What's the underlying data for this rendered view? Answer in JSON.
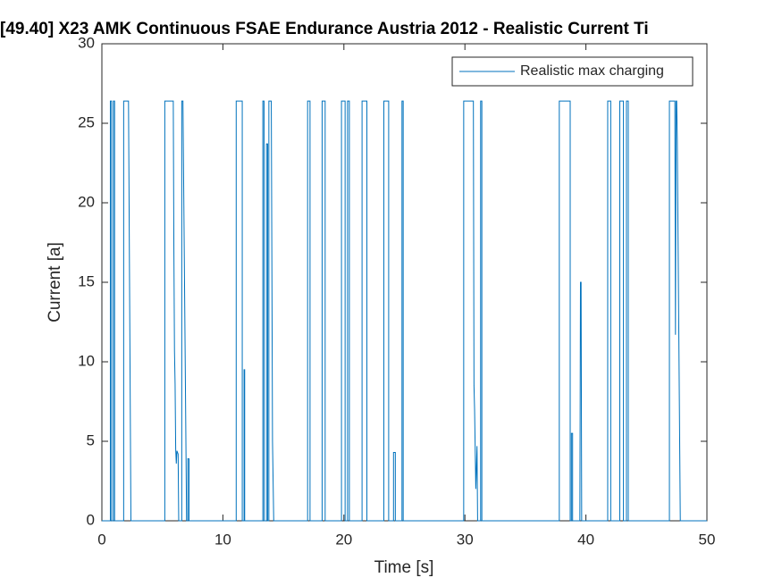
{
  "chart_data": {
    "type": "line",
    "title": "[49.40] X23 AMK Continuous  FSAE Endurance Austria 2012 - Realistic Current Ti",
    "x_label": "Time [s]",
    "y_label": "Current [a]",
    "xlim": [
      0,
      50
    ],
    "ylim": [
      0,
      30
    ],
    "xticks": [
      0,
      10,
      20,
      30,
      40,
      50
    ],
    "yticks": [
      0,
      5,
      10,
      15,
      20,
      25,
      30
    ],
    "grid": false,
    "legend": "top-right",
    "x": [
      0,
      0.7,
      0.7,
      0.8,
      0.8,
      0.95,
      0.95,
      1.05,
      1.05,
      1.8,
      1.8,
      2.2,
      2.4,
      5.2,
      5.2,
      5.9,
      5.95,
      6.0,
      6.05,
      6.1,
      6.15,
      6.2,
      6.3,
      6.35,
      6.6,
      6.6,
      6.7,
      7.0,
      7.1,
      7.1,
      7.2,
      7.2,
      11.1,
      11.1,
      11.6,
      11.6,
      11.75,
      11.75,
      11.8,
      11.8,
      13.3,
      13.3,
      13.4,
      13.4,
      13.6,
      13.6,
      13.7,
      13.7,
      13.8,
      13.8,
      14.0,
      14.1,
      14.2,
      17.0,
      17.0,
      17.2,
      17.2,
      18.2,
      18.2,
      18.45,
      18.45,
      19.8,
      19.8,
      20.1,
      20.1,
      20.3,
      20.3,
      20.45,
      20.45,
      21.5,
      21.5,
      21.9,
      21.9,
      23.3,
      23.3,
      23.7,
      23.7,
      24.1,
      24.1,
      24.25,
      24.25,
      24.8,
      24.8,
      24.9,
      24.9,
      29.9,
      29.9,
      30.7,
      30.75,
      30.8,
      30.9,
      31.0,
      31.05,
      31.3,
      31.3,
      31.4,
      31.4,
      37.8,
      37.8,
      38.7,
      38.7,
      38.8,
      38.8,
      38.9,
      38.9,
      39.5,
      39.55,
      39.6,
      39.65,
      41.8,
      41.8,
      42.05,
      42.05,
      42.8,
      42.8,
      43.1,
      43.1,
      43.35,
      43.35,
      43.5,
      43.5,
      46.9,
      46.9,
      47.35,
      47.4,
      47.45,
      47.5,
      47.55,
      47.8,
      50
    ],
    "series": [
      {
        "name": "Realistic max charging",
        "color": "#0072bd",
        "values": [
          0,
          0,
          26.4,
          26.4,
          0,
          0,
          26.4,
          26.4,
          0,
          0,
          26.4,
          26.4,
          0,
          0,
          26.4,
          26.4,
          17,
          10.7,
          8.6,
          4.5,
          3.6,
          4.4,
          4.2,
          0,
          0,
          26.4,
          26.4,
          0,
          0,
          3.9,
          3.9,
          0,
          0,
          26.4,
          26.4,
          0,
          0,
          9.5,
          9.5,
          0,
          0,
          26.4,
          26.4,
          0,
          0,
          23.7,
          23.7,
          0,
          0,
          26.4,
          26.4,
          5,
          0,
          0,
          26.4,
          26.4,
          0,
          0,
          26.4,
          26.4,
          0,
          0,
          26.4,
          26.4,
          0,
          0,
          26.4,
          26.4,
          0,
          0,
          26.4,
          26.4,
          0,
          0,
          26.4,
          26.4,
          0,
          0,
          4.3,
          4.3,
          0,
          0,
          26.4,
          26.4,
          0,
          0,
          26.4,
          26.4,
          8.5,
          7,
          2,
          4.7,
          0,
          0,
          26.4,
          26.4,
          0,
          0,
          26.4,
          26.4,
          0,
          0,
          5.5,
          5.5,
          0,
          0,
          15,
          15,
          0,
          0,
          26.4,
          26.4,
          0,
          0,
          26.4,
          26.4,
          0,
          0,
          26.4,
          26.4,
          0,
          0,
          26.4,
          26.4,
          11.7,
          26.4,
          26.4,
          24,
          0,
          0
        ]
      }
    ]
  }
}
